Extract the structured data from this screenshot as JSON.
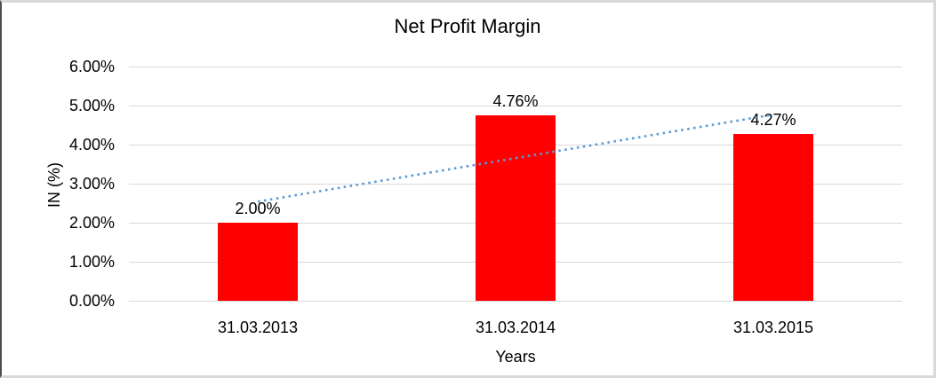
{
  "frame": {
    "background": "#ffffff",
    "border_color": "#d9d9d9",
    "left_edge_color": "#4d4d4d"
  },
  "chart_data": {
    "type": "bar",
    "title": "Net Profit Margin",
    "categories": [
      "31.03.2013",
      "31.03.2014",
      "31.03.2015"
    ],
    "values": [
      2.0,
      4.76,
      4.27
    ],
    "data_labels": [
      "2.00%",
      "4.76%",
      "4.27%"
    ],
    "xlabel": "Years",
    "ylabel": "IN (%)",
    "ylim": [
      0,
      6
    ],
    "ytick_step": 1,
    "ytick_labels": [
      "0.00%",
      "1.00%",
      "2.00%",
      "3.00%",
      "4.00%",
      "5.00%",
      "6.00%"
    ],
    "grid": true,
    "legend": "none",
    "bar_color": "#ff0000",
    "gridline_color": "#d9d9d9",
    "text_color": "#000000",
    "trendline": {
      "type": "linear",
      "style": "dotted",
      "color": "#5b9bd5",
      "start_value": 2.54,
      "end_value": 4.77
    }
  }
}
